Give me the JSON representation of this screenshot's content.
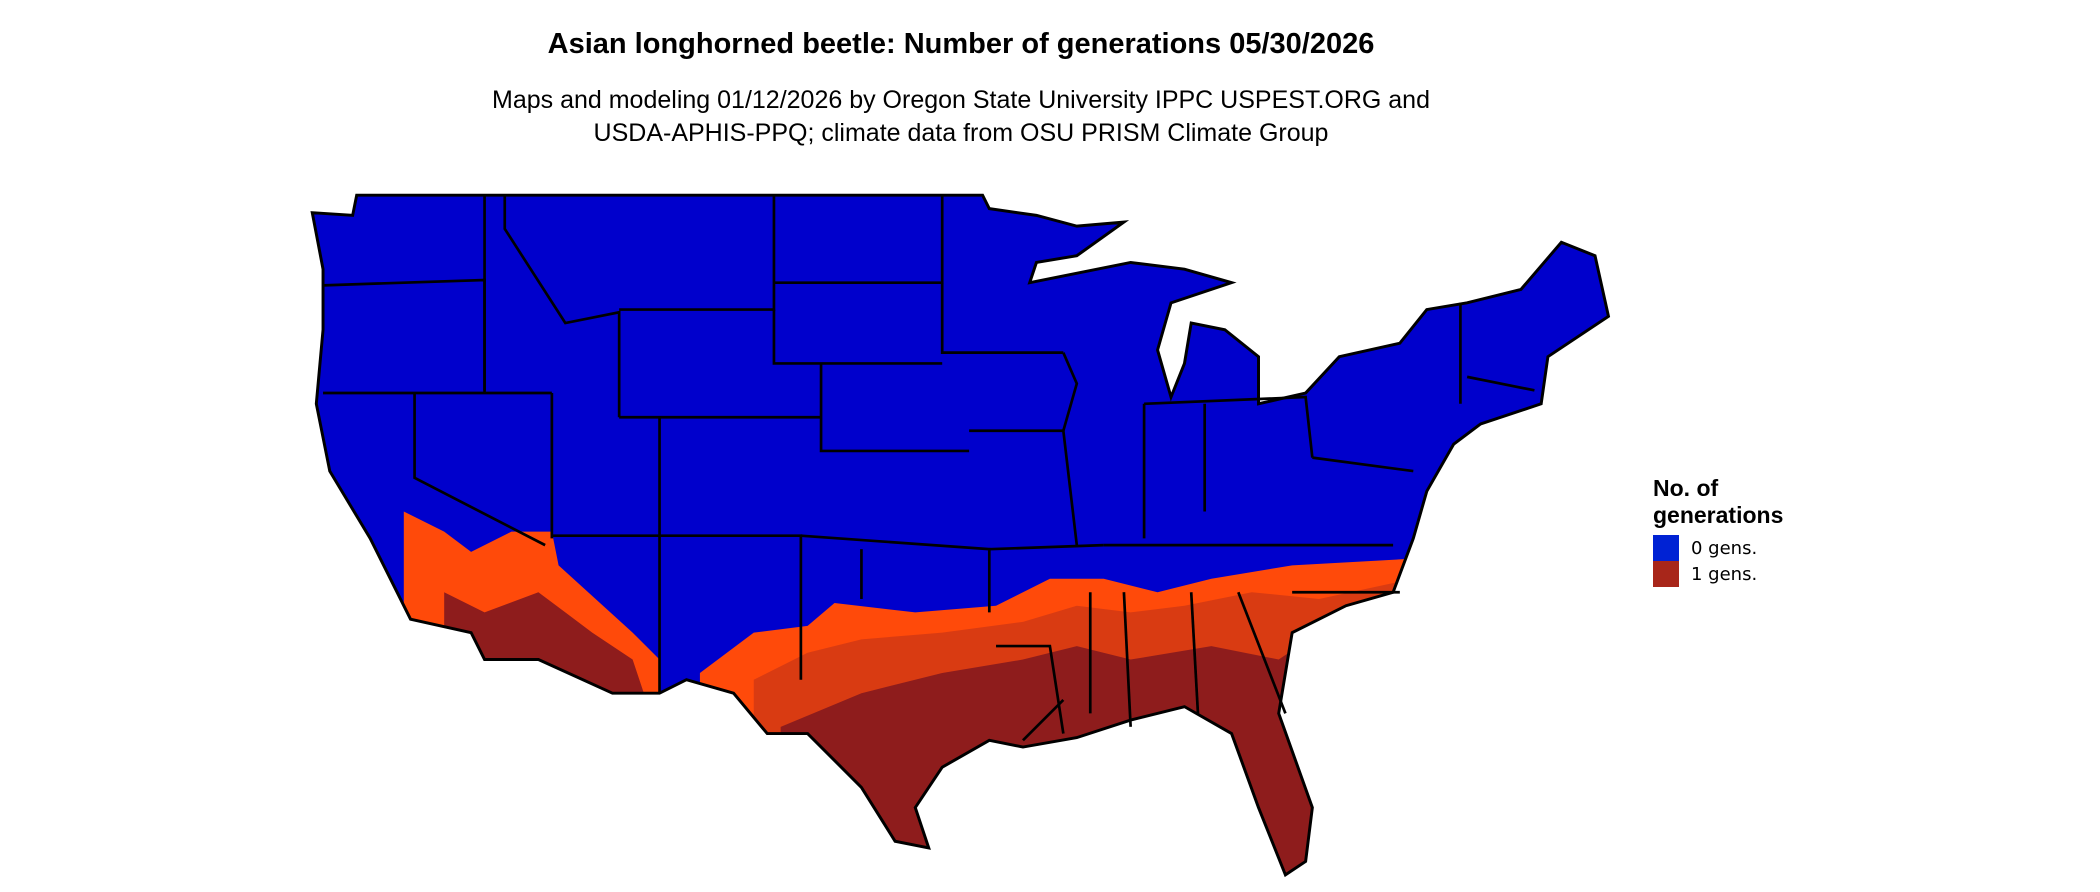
{
  "title": "Asian longhorned beetle: Number of generations 05/30/2026",
  "subtitle_lines": [
    "Maps and modeling 01/12/2026 by Oregon State University IPPC USPEST.ORG and",
    "USDA-APHIS-PPQ; climate data from OSU PRISM Climate Group"
  ],
  "legend": {
    "title_lines": [
      "No. of",
      "generations"
    ],
    "items": [
      {
        "label": "0 gens.",
        "color": "#0022d4"
      },
      {
        "label": "1 gens.",
        "color": "#a8261a"
      }
    ]
  },
  "map_colors": {
    "zero_gens": "#0000cc",
    "transition_light": "#ff4a0a",
    "transition_mid": "#d93b12",
    "one_gen": "#8e1c1c",
    "borders": "#000000"
  }
}
